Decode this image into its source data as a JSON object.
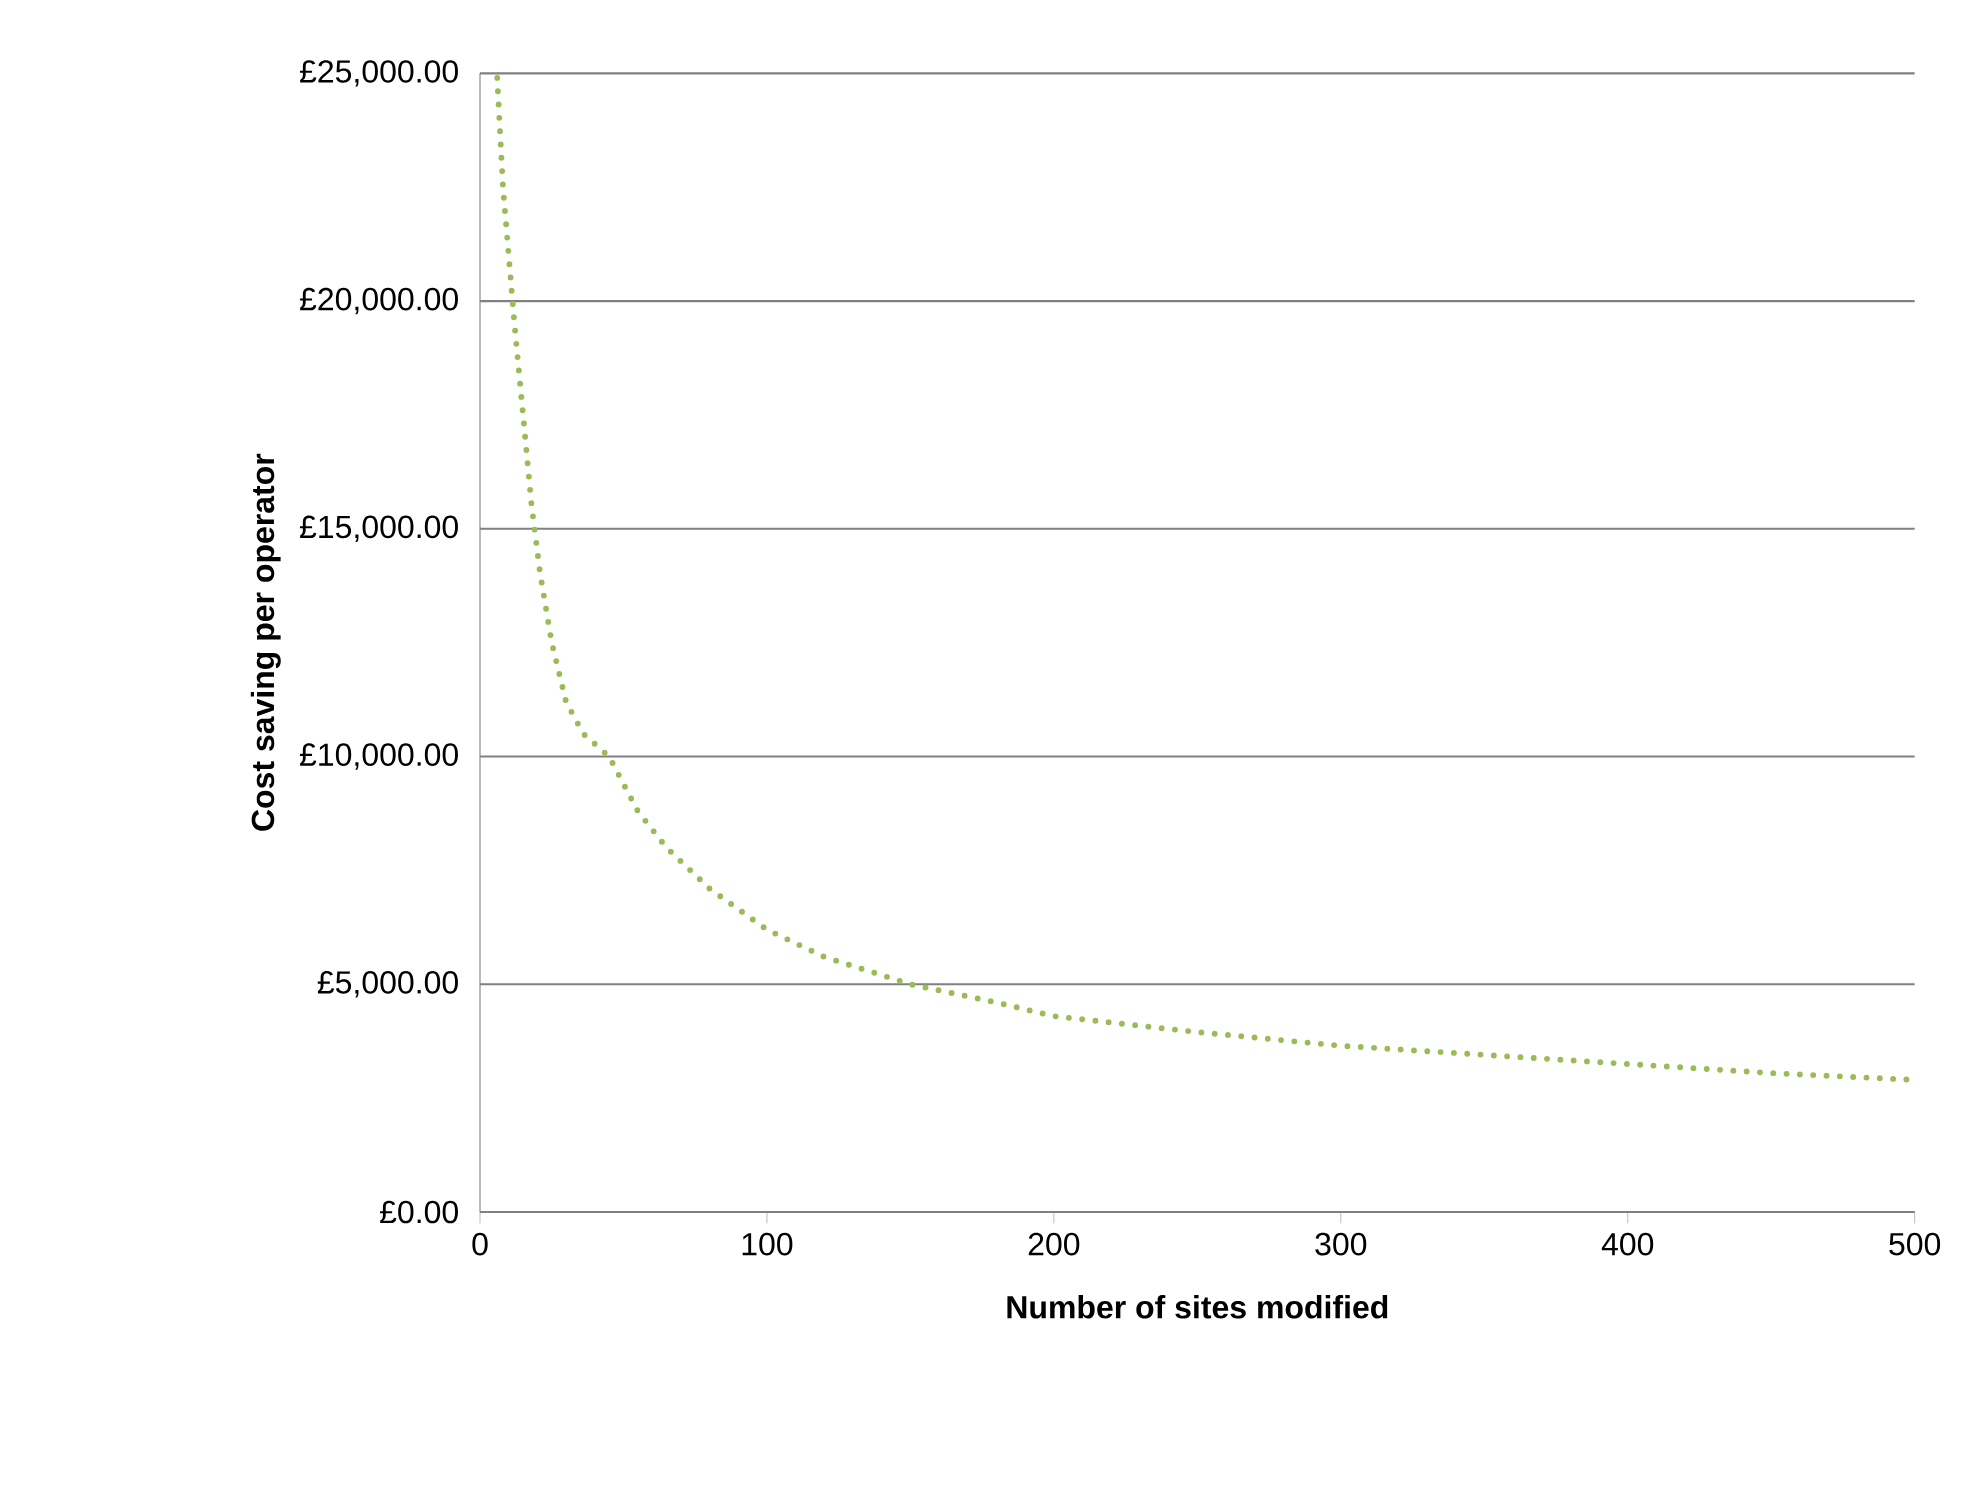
{
  "chart_data": {
    "type": "line",
    "xlabel": "Number of sites modified",
    "ylabel": "Cost saving per operator",
    "x": [
      6,
      8,
      10,
      12,
      15,
      18,
      21,
      25,
      30,
      36,
      45,
      55,
      65,
      80,
      100,
      120,
      150,
      180,
      200,
      250,
      300,
      350,
      400,
      450,
      500
    ],
    "series": [
      {
        "color": "#9bbb59",
        "values": [
          24900,
          22500,
          21000,
          19500,
          17500,
          15500,
          14000,
          12500,
          11200,
          10500,
          10000,
          8800,
          8000,
          7100,
          6200,
          5600,
          5000,
          4600,
          4300,
          3950,
          3650,
          3450,
          3250,
          3050,
          2900
        ]
      }
    ],
    "xlim": [
      0,
      500
    ],
    "ylim": [
      0,
      25000
    ],
    "xticks": [
      0,
      100,
      200,
      300,
      400,
      500
    ],
    "yticks": [
      {
        "value": 0,
        "label": "£0.00"
      },
      {
        "value": 5000,
        "label": "£5,000.00"
      },
      {
        "value": 10000,
        "label": "£10,000.00"
      },
      {
        "value": 15000,
        "label": "£15,000.00"
      },
      {
        "value": 20000,
        "label": "£20,000.00"
      },
      {
        "value": 25000,
        "label": "£25,000.00"
      }
    ],
    "grid": "y",
    "line_style": "dotted",
    "marker": "none"
  }
}
